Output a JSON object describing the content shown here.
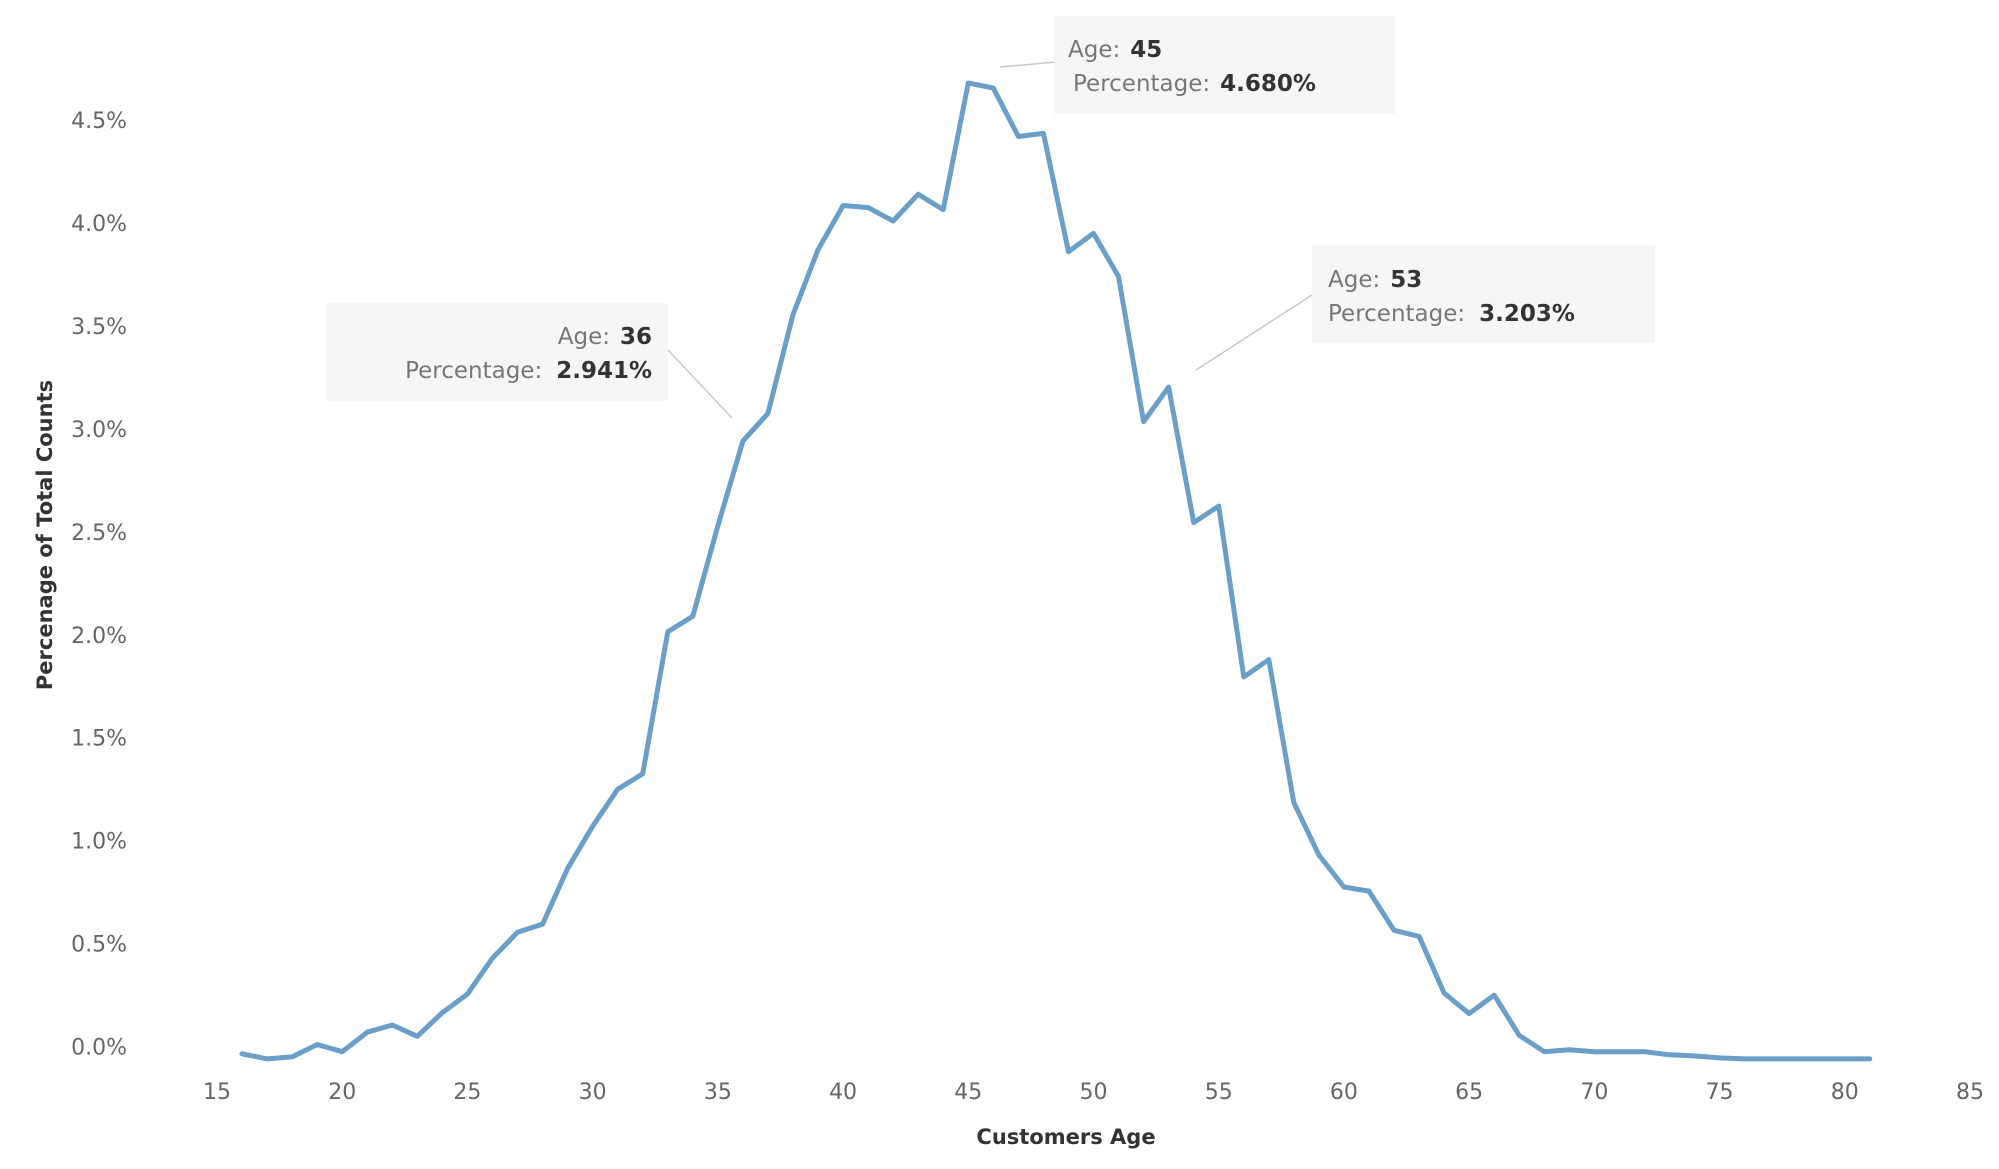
{
  "chart_data": {
    "type": "line",
    "title": "",
    "xlabel": "Customers Age",
    "ylabel": "Percenage of Total Counts",
    "xlim": [
      15,
      85
    ],
    "ylim": [
      -0.07,
      4.85
    ],
    "x_ticks": [
      15,
      20,
      25,
      30,
      35,
      40,
      45,
      50,
      55,
      60,
      65,
      70,
      75,
      80,
      85
    ],
    "x_tick_labels": [
      "15",
      "20",
      "25",
      "30",
      "35",
      "40",
      "45",
      "50",
      "55",
      "60",
      "65",
      "70",
      "75",
      "80",
      "85"
    ],
    "y_ticks": [
      0.0,
      0.5,
      1.0,
      1.5,
      2.0,
      2.5,
      3.0,
      3.5,
      4.0,
      4.5
    ],
    "y_tick_labels": [
      "0.0%",
      "0.5%",
      "1.0%",
      "1.5%",
      "2.0%",
      "2.5%",
      "3.0%",
      "3.5%",
      "4.0%",
      "4.5%"
    ],
    "grid": false,
    "legend": "none",
    "series": [
      {
        "color": "#6a9fc9",
        "x": [
          16,
          17,
          18,
          19,
          20,
          21,
          22,
          23,
          24,
          25,
          26,
          27,
          28,
          29,
          30,
          31,
          32,
          33,
          34,
          35,
          36,
          37,
          38,
          39,
          40,
          41,
          42,
          43,
          44,
          45,
          46,
          47,
          48,
          49,
          50,
          51,
          52,
          53,
          54,
          55,
          56,
          57,
          58,
          59,
          60,
          61,
          62,
          63,
          64,
          65,
          66,
          67,
          68,
          69,
          70,
          71,
          72,
          73,
          74,
          75,
          76,
          77,
          78,
          79,
          80,
          81
        ],
        "y": [
          -0.035,
          -0.06,
          -0.05,
          0.01,
          -0.025,
          0.07,
          0.105,
          0.05,
          0.165,
          0.255,
          0.43,
          0.555,
          0.595,
          0.865,
          1.07,
          1.25,
          1.325,
          2.015,
          2.09,
          2.53,
          2.941,
          3.075,
          3.555,
          3.87,
          4.085,
          4.075,
          4.01,
          4.14,
          4.065,
          4.68,
          4.655,
          4.42,
          4.435,
          3.86,
          3.95,
          3.74,
          3.035,
          3.203,
          2.545,
          2.625,
          1.795,
          1.88,
          1.185,
          0.93,
          0.775,
          0.755,
          0.565,
          0.535,
          0.26,
          0.16,
          0.25,
          0.055,
          -0.025,
          -0.015,
          -0.025,
          -0.025,
          -0.025,
          -0.04,
          -0.045,
          -0.055,
          -0.06,
          -0.06,
          -0.06,
          -0.06,
          -0.06,
          -0.06
        ]
      }
    ],
    "annotations": [
      {
        "age_label": "Age:",
        "age": "45",
        "pct_label": "Percentage:",
        "pct": "4.680%",
        "x": 45,
        "y": 4.68
      },
      {
        "age_label": "Age:",
        "age": "36",
        "pct_label": "Percentage:",
        "pct": "2.941%",
        "x": 36,
        "y": 2.941
      },
      {
        "age_label": "Age:",
        "age": "53",
        "pct_label": "Percentage:",
        "pct": "3.203%",
        "x": 53,
        "y": 3.203
      }
    ]
  }
}
